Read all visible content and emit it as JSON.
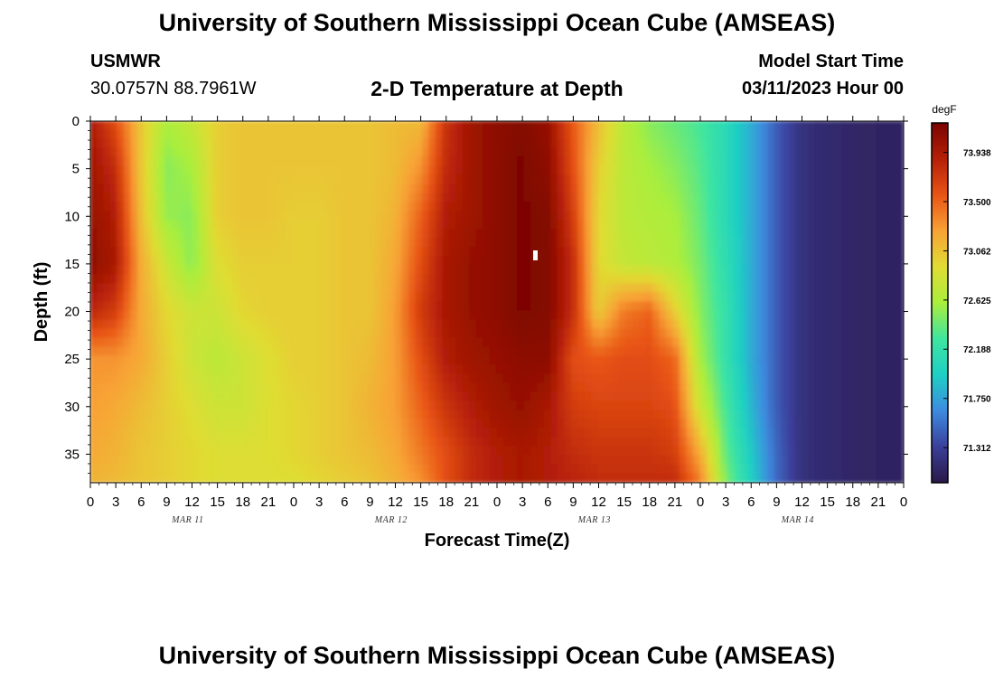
{
  "header": {
    "title": "University of Southern Mississippi Ocean Cube (AMSEAS)",
    "station": "USMWR",
    "coords": "30.0757N  88.7961W",
    "subtitle": "2-D Temperature at Depth",
    "model_start_label": "Model Start Time",
    "model_start_value": "03/11/2023 Hour 00"
  },
  "footer": {
    "title": "University of Southern Mississippi Ocean Cube (AMSEAS)"
  },
  "chart_data": {
    "type": "heatmap",
    "title": "2-D Temperature at Depth",
    "xlabel": "Forecast Time(Z)",
    "ylabel": "Depth (ft)",
    "x_unit": "hours since 03/11/2023 00Z",
    "xlim": [
      0,
      96
    ],
    "ylim": [
      0,
      38
    ],
    "x_tick_labels": [
      "0",
      "3",
      "6",
      "9",
      "12",
      "15",
      "18",
      "21",
      "0",
      "3",
      "6",
      "9",
      "12",
      "15",
      "18",
      "21",
      "0",
      "3",
      "6",
      "9",
      "12",
      "15",
      "18",
      "21",
      "0",
      "3",
      "6",
      "9",
      "12",
      "15",
      "18",
      "21",
      "0"
    ],
    "day_labels": [
      "MAR 11",
      "MAR 12",
      "MAR 13",
      "MAR 14"
    ],
    "y_ticks": [
      0,
      5,
      10,
      15,
      20,
      25,
      30,
      35
    ],
    "colorbar": {
      "unit": "degF",
      "min": 71.0,
      "max": 74.2,
      "ticks": [
        73.938,
        73.5,
        73.062,
        72.625,
        72.188,
        71.75,
        71.312
      ]
    },
    "colors": {
      "t0": "#2a1848",
      "t1": "#3b3f9a",
      "t2": "#3d8be0",
      "t3": "#1ecfc4",
      "t4": "#3fe5a0",
      "t5": "#aaee3c",
      "t6": "#e0dc33",
      "t7": "#f8a236",
      "t8": "#e85415",
      "t9": "#b51f07",
      "t10": "#7a0402"
    },
    "depth_rows": [
      0,
      5,
      10,
      15,
      20,
      25,
      30,
      35,
      38
    ],
    "time_hours": [
      0,
      3,
      6,
      9,
      12,
      15,
      18,
      21,
      24,
      27,
      30,
      33,
      36,
      39,
      42,
      45,
      48,
      51,
      54,
      57,
      60,
      63,
      66,
      69,
      72,
      75,
      78,
      81,
      84,
      87,
      90,
      93,
      96
    ],
    "temperature_degF": [
      [
        73.95,
        73.6,
        73.05,
        72.62,
        72.75,
        73.0,
        73.05,
        73.05,
        73.05,
        73.05,
        73.05,
        73.05,
        73.1,
        73.1,
        73.75,
        74.0,
        74.1,
        74.15,
        74.05,
        73.55,
        73.1,
        72.7,
        72.5,
        72.4,
        72.3,
        72.1,
        71.8,
        71.45,
        71.2,
        71.15,
        71.12,
        71.1,
        71.1
      ],
      [
        74.0,
        73.8,
        73.05,
        72.5,
        72.6,
        73.0,
        73.05,
        73.05,
        73.05,
        73.05,
        73.05,
        73.05,
        73.1,
        73.3,
        73.8,
        74.0,
        74.1,
        74.18,
        74.1,
        73.6,
        73.0,
        72.7,
        72.6,
        72.5,
        72.35,
        72.1,
        71.8,
        71.45,
        71.2,
        71.15,
        71.12,
        71.1,
        71.1
      ],
      [
        74.05,
        73.9,
        73.1,
        72.55,
        72.5,
        73.0,
        73.05,
        73.05,
        73.0,
        73.0,
        73.05,
        73.05,
        73.15,
        73.5,
        73.9,
        74.0,
        74.1,
        74.18,
        74.15,
        73.7,
        72.95,
        72.7,
        72.65,
        72.6,
        72.4,
        72.1,
        71.8,
        71.45,
        71.2,
        71.15,
        71.12,
        71.1,
        71.1
      ],
      [
        74.1,
        73.95,
        73.2,
        72.8,
        72.5,
        72.9,
        73.0,
        73.0,
        73.0,
        73.0,
        73.05,
        73.05,
        73.2,
        73.6,
        73.95,
        74.05,
        74.1,
        74.18,
        74.15,
        73.8,
        72.95,
        72.75,
        72.7,
        72.65,
        72.45,
        72.15,
        71.8,
        71.45,
        71.2,
        71.15,
        71.12,
        71.1,
        71.1
      ],
      [
        73.85,
        73.7,
        73.2,
        72.95,
        72.8,
        72.8,
        72.95,
        73.0,
        73.0,
        73.0,
        73.05,
        73.05,
        73.25,
        73.7,
        73.95,
        74.05,
        74.1,
        74.18,
        74.15,
        73.8,
        73.0,
        73.4,
        73.5,
        73.0,
        72.5,
        72.2,
        71.8,
        71.45,
        71.2,
        71.15,
        71.12,
        71.1,
        71.1
      ],
      [
        73.3,
        73.3,
        73.2,
        73.0,
        72.8,
        72.7,
        72.8,
        72.9,
        73.0,
        73.0,
        73.05,
        73.1,
        73.25,
        73.6,
        73.9,
        74.0,
        74.05,
        74.1,
        74.1,
        73.6,
        73.55,
        73.6,
        73.6,
        73.5,
        72.6,
        72.2,
        71.8,
        71.45,
        71.2,
        71.15,
        71.12,
        71.1,
        71.1
      ],
      [
        73.25,
        73.2,
        73.1,
        73.0,
        72.9,
        72.8,
        72.8,
        72.9,
        72.95,
        73.0,
        73.05,
        73.15,
        73.25,
        73.5,
        73.75,
        73.9,
        74.0,
        74.05,
        73.95,
        73.7,
        73.65,
        73.65,
        73.65,
        73.6,
        72.8,
        72.3,
        71.85,
        71.45,
        71.2,
        71.15,
        71.12,
        71.1,
        71.1
      ],
      [
        73.2,
        73.15,
        73.05,
        73.0,
        72.95,
        72.9,
        72.9,
        72.9,
        72.95,
        73.0,
        73.05,
        73.1,
        73.2,
        73.4,
        73.6,
        73.8,
        73.9,
        73.95,
        73.9,
        73.8,
        73.75,
        73.75,
        73.75,
        73.7,
        73.2,
        72.4,
        71.95,
        71.5,
        71.2,
        71.15,
        71.12,
        71.1,
        71.1
      ],
      [
        73.15,
        73.1,
        73.05,
        73.0,
        72.95,
        72.9,
        72.9,
        72.9,
        72.9,
        72.95,
        73.0,
        73.05,
        73.15,
        73.3,
        73.6,
        73.8,
        73.9,
        73.95,
        73.9,
        73.85,
        73.8,
        73.8,
        73.8,
        73.8,
        73.4,
        72.5,
        72.0,
        71.5,
        71.2,
        71.15,
        71.12,
        71.1,
        71.1
      ]
    ]
  }
}
